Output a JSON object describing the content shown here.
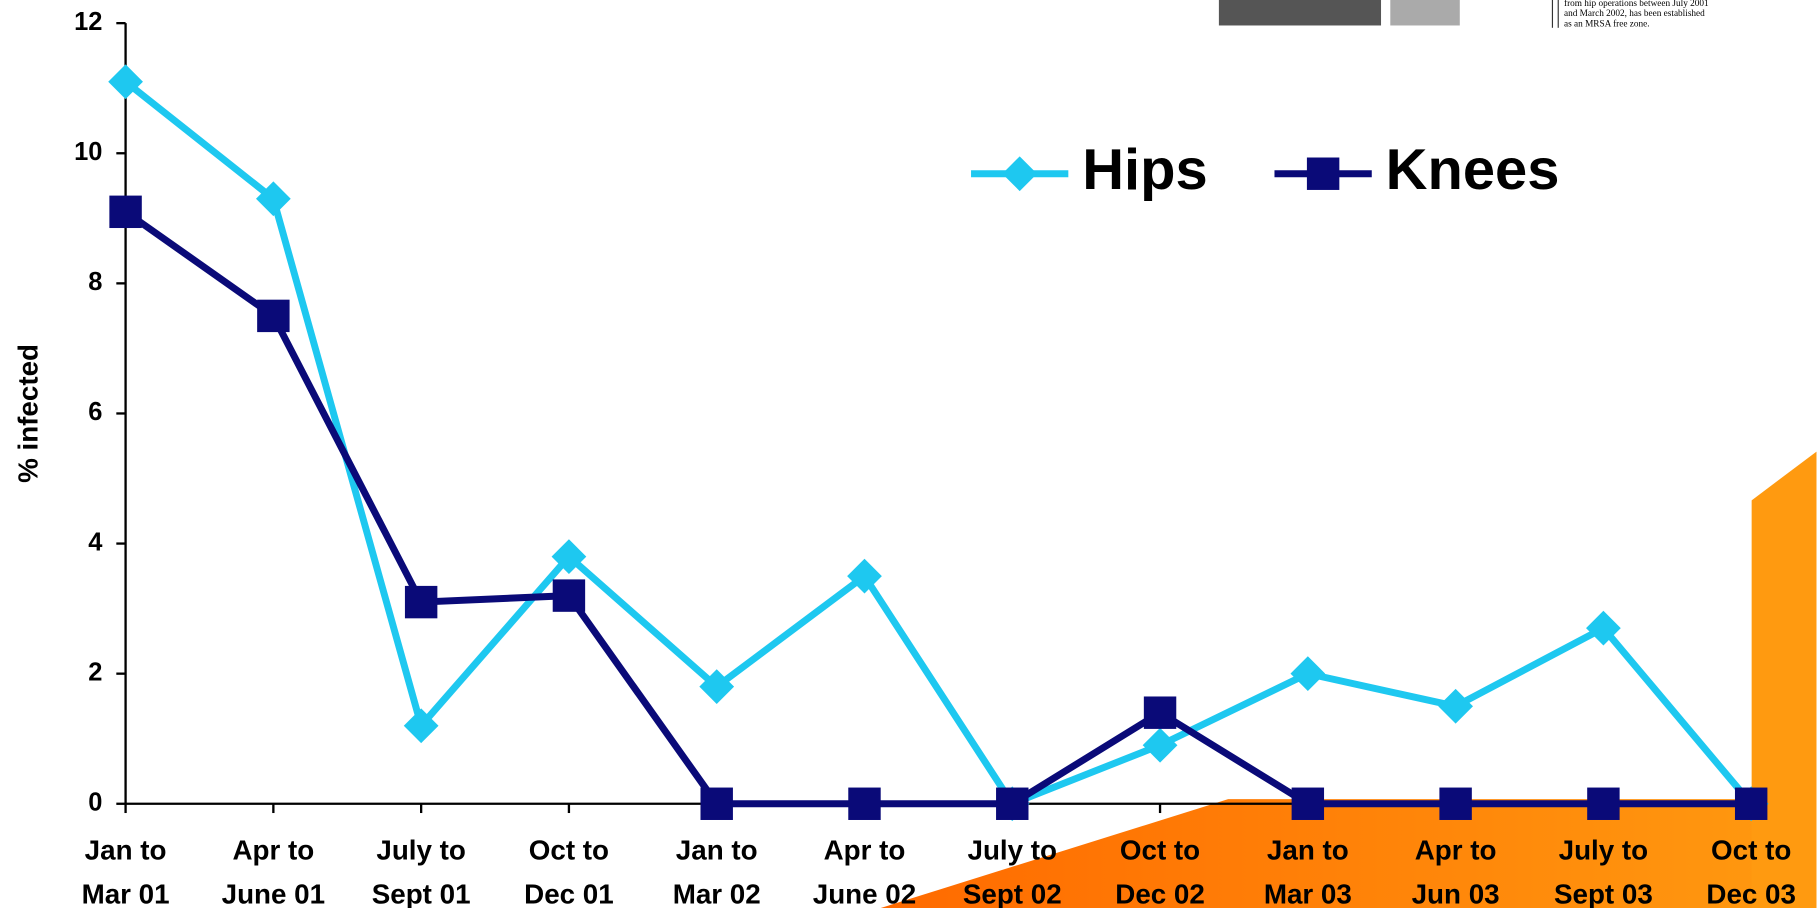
{
  "chart_data": {
    "type": "line",
    "y_label": "% infected",
    "categories": [
      [
        "Jan to",
        "Mar 01"
      ],
      [
        "Apr to",
        "June 01"
      ],
      [
        "July to",
        "Sept 01"
      ],
      [
        "Oct to",
        "Dec 01"
      ],
      [
        "Jan to",
        "Mar 02"
      ],
      [
        "Apr to",
        "June 02"
      ],
      [
        "July to",
        "Sept 02"
      ],
      [
        "Oct to",
        "Dec 02"
      ],
      [
        "Jan to",
        "Mar 03"
      ],
      [
        "Apr to",
        "Jun 03"
      ],
      [
        "July to",
        "Sept 03"
      ],
      [
        "Oct to",
        "Dec 03"
      ]
    ],
    "series": [
      {
        "name": "Hips",
        "color": "#1ec8f0",
        "marker": "diamond",
        "values": [
          11.1,
          9.3,
          1.2,
          3.8,
          1.8,
          3.5,
          0,
          0.9,
          2.0,
          1.5,
          2.7,
          0
        ]
      },
      {
        "name": "Knees",
        "color": "#0a0a78",
        "marker": "square",
        "values": [
          9.1,
          7.5,
          3.1,
          3.2,
          0,
          0,
          0,
          1.4,
          0,
          0,
          0,
          0
        ]
      }
    ],
    "ylim": [
      0,
      12
    ],
    "yticks": [
      0,
      2,
      4,
      6,
      8,
      10,
      12
    ],
    "grid": false
  },
  "clipping_text": [
    "from hip operations between July 2001",
    "and March 2002, has been established",
    "as an MRSA free zone."
  ]
}
